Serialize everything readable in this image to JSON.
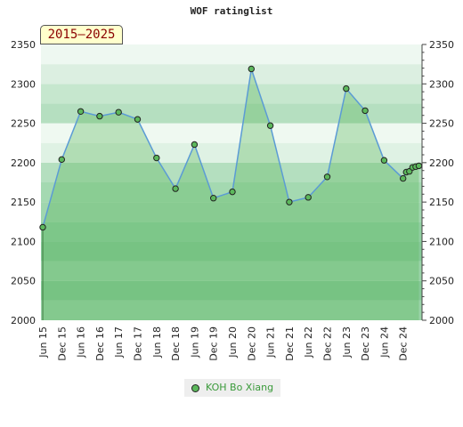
{
  "chart_data": {
    "type": "area",
    "title": "WOF ratinglist",
    "period_label": "2015–2025",
    "xlabel": "",
    "ylabel": "",
    "ylim": [
      2000,
      2350
    ],
    "y_ticks": [
      2000,
      2050,
      2100,
      2150,
      2200,
      2250,
      2300,
      2350
    ],
    "x_ticks": [
      "Jun 15",
      "Dec 15",
      "Jun 16",
      "Dec 16",
      "Jun 17",
      "Dec 17",
      "Jun 18",
      "Dec 18",
      "Jun 19",
      "Dec 19",
      "Jun 20",
      "Dec 20",
      "Jun 21",
      "Dec 21",
      "Jun 22",
      "Dec 22",
      "Jun 23",
      "Dec 23",
      "Jun 24",
      "Dec 24"
    ],
    "grid": true,
    "legend_position": "bottom-center",
    "series": [
      {
        "name": "KOH Bo Xiang",
        "color": "#5cb85c",
        "line_color": "#5b9bd5",
        "points": [
          {
            "x": "2015-06",
            "y": 2118
          },
          {
            "x": "2015-12",
            "y": 2204
          },
          {
            "x": "2016-06",
            "y": 2265
          },
          {
            "x": "2016-12",
            "y": 2259
          },
          {
            "x": "2017-06",
            "y": 2264
          },
          {
            "x": "2017-12",
            "y": 2255
          },
          {
            "x": "2018-06",
            "y": 2206
          },
          {
            "x": "2018-12",
            "y": 2167
          },
          {
            "x": "2019-06",
            "y": 2223
          },
          {
            "x": "2019-12",
            "y": 2155
          },
          {
            "x": "2020-06",
            "y": 2163
          },
          {
            "x": "2020-12",
            "y": 2319
          },
          {
            "x": "2021-06",
            "y": 2247
          },
          {
            "x": "2021-12",
            "y": 2150
          },
          {
            "x": "2022-06",
            "y": 2156
          },
          {
            "x": "2022-12",
            "y": 2182
          },
          {
            "x": "2023-06",
            "y": 2294
          },
          {
            "x": "2023-12",
            "y": 2266
          },
          {
            "x": "2024-06",
            "y": 2203
          },
          {
            "x": "2024-12",
            "y": 2180
          },
          {
            "x": "2025-01",
            "y": 2188
          },
          {
            "x": "2025-02",
            "y": 2189
          },
          {
            "x": "2025-03",
            "y": 2194
          },
          {
            "x": "2025-04",
            "y": 2195
          },
          {
            "x": "2025-05",
            "y": 2196
          }
        ]
      }
    ]
  }
}
